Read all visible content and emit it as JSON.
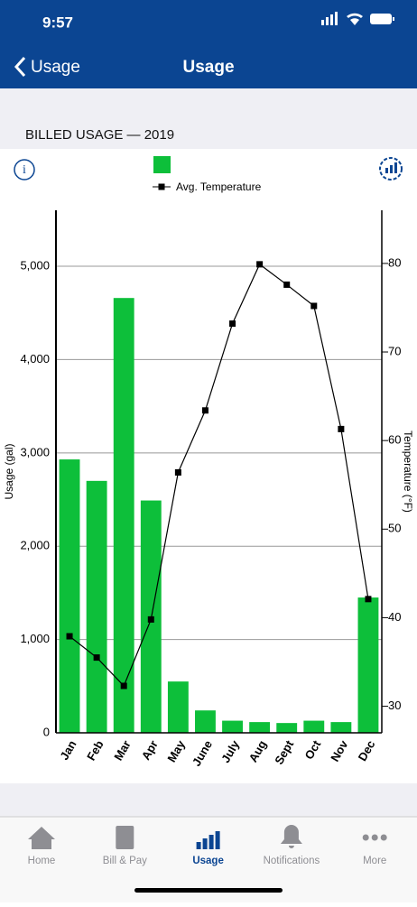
{
  "status": {
    "time": "9:57"
  },
  "nav": {
    "back": "Usage",
    "title": "Usage"
  },
  "section": {
    "title": "BILLED USAGE — 2019"
  },
  "chart_data": {
    "type": "bar",
    "categories": [
      "Jan",
      "Feb",
      "Mar",
      "Apr",
      "May",
      "June",
      "July",
      "Aug",
      "Sept",
      "Oct",
      "Nov",
      "Dec"
    ],
    "series": [
      {
        "color": "#0dbf3a",
        "values": [
          2930,
          2700,
          4660,
          2490,
          550,
          240,
          130,
          115,
          105,
          130,
          115,
          1450
        ]
      },
      {
        "name": "Avg. Temperature",
        "type": "line",
        "axis": "y2",
        "color": "#000000",
        "values": [
          37.9,
          35.5,
          32.3,
          39.8,
          56.4,
          63.4,
          73.2,
          79.9,
          77.6,
          75.2,
          61.3,
          42.1
        ]
      }
    ],
    "y_label": "Usage (gal)",
    "y2_label": "Temperature (°F)",
    "ylim": [
      0,
      5600
    ],
    "yticks": [
      0,
      {
        "value": 1000,
        "label": "1,000"
      },
      {
        "value": 2000,
        "label": "2,000"
      },
      {
        "value": 3000,
        "label": "3,000"
      },
      {
        "value": 4000,
        "label": "4,000"
      },
      {
        "value": 5000,
        "label": "5,000"
      }
    ],
    "y2lim": [
      27,
      86
    ],
    "y2ticks": [
      30,
      40,
      50,
      60,
      70,
      80
    ],
    "grid": true
  },
  "tabs": {
    "items": [
      {
        "label": "Home"
      },
      {
        "label": "Bill & Pay"
      },
      {
        "label": "Usage"
      },
      {
        "label": "Notifications"
      },
      {
        "label": "More"
      }
    ]
  }
}
